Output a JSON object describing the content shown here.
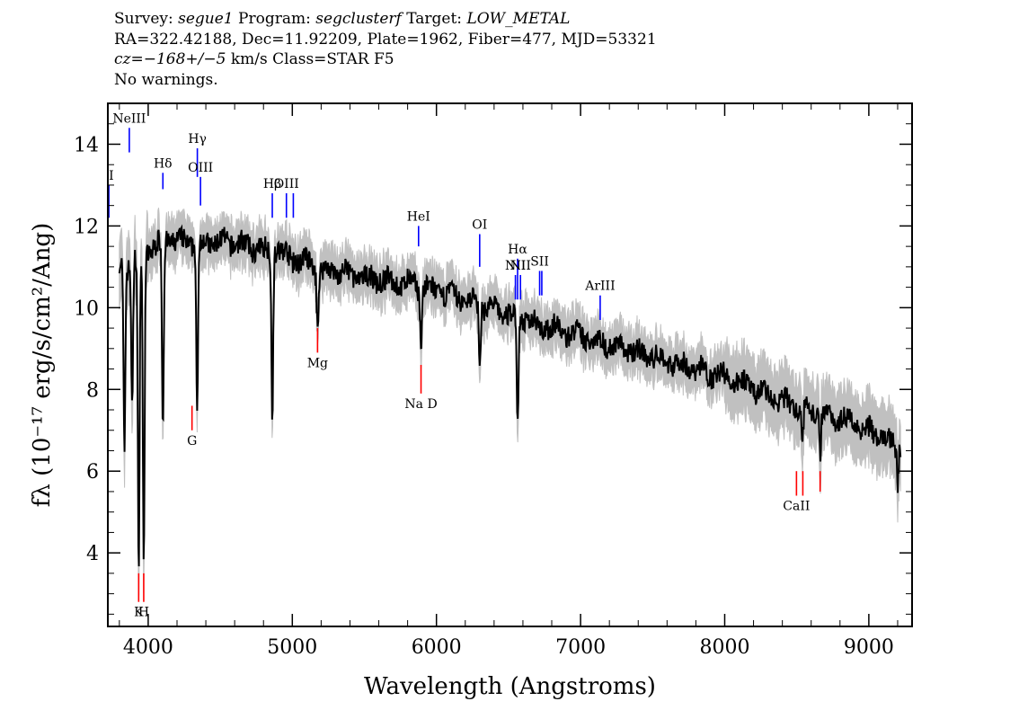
{
  "header": {
    "survey_label": "Survey:",
    "survey": "segue1",
    "program_label": "Program:",
    "program": "segclusterf",
    "target_label": "Target:",
    "target": "LOW_METAL",
    "coords": "RA=322.42188, Dec=11.92209, Plate=1962, Fiber=477, MJD=53321",
    "cz": "cz=−168+/−5",
    "cz_rest": " km/s Class=STAR F5",
    "warnings": "No warnings."
  },
  "colors": {
    "flux": "#000000",
    "error_band": "#c0c0c0",
    "emission": "#0000ff",
    "absorption": "#ff0000"
  },
  "chart_data": {
    "type": "line",
    "title": "",
    "xlabel": "Wavelength (Angstroms)",
    "ylabel": "fλ (10⁻¹⁷ erg/s/cm²/Ang)",
    "xlim": [
      3720,
      9300
    ],
    "ylim": [
      2.2,
      15.0
    ],
    "xticks": [
      4000,
      5000,
      6000,
      7000,
      8000,
      9000
    ],
    "yticks": [
      4,
      6,
      8,
      10,
      12,
      14
    ],
    "grid": false,
    "series": [
      {
        "x": [
          3800,
          3850,
          3900,
          3950,
          4000,
          4050,
          4100,
          4150,
          4200,
          4300,
          4400,
          4500,
          4600,
          4700,
          4800,
          4900,
          5000,
          5100,
          5200,
          5300,
          5400,
          5500,
          5600,
          5700,
          5800,
          5900,
          6000,
          6100,
          6200,
          6300,
          6400,
          6500,
          6600,
          6700,
          6800,
          6900,
          7000,
          7100,
          7200,
          7300,
          7400,
          7500,
          7600,
          7700,
          7800,
          7900,
          8000,
          8100,
          8200,
          8300,
          8400,
          8500,
          8600,
          8700,
          8800,
          8900,
          9000,
          9100,
          9200
        ],
        "y": [
          11.0,
          11.0,
          11.2,
          11.2,
          11.4,
          11.5,
          11.6,
          11.7,
          11.6,
          11.6,
          11.6,
          11.6,
          11.6,
          11.5,
          11.4,
          11.4,
          11.2,
          11.1,
          10.9,
          10.9,
          10.8,
          10.7,
          10.7,
          10.6,
          10.6,
          10.5,
          10.4,
          10.3,
          10.2,
          10.1,
          9.95,
          9.85,
          9.75,
          9.6,
          9.5,
          9.4,
          9.3,
          9.2,
          9.1,
          9.0,
          8.9,
          8.8,
          8.7,
          8.6,
          8.5,
          8.4,
          8.3,
          8.2,
          8.0,
          7.85,
          7.7,
          7.6,
          7.5,
          7.4,
          7.3,
          7.2,
          7.0,
          6.8,
          6.6
        ]
      }
    ],
    "absorption_features": [
      {
        "x": 3934,
        "depth": 7.8
      },
      {
        "x": 3969,
        "depth": 7.6
      },
      {
        "x": 3835,
        "depth": 4.6
      },
      {
        "x": 3889,
        "depth": 3.6
      },
      {
        "x": 4102,
        "depth": 4.6
      },
      {
        "x": 4340,
        "depth": 4.4
      },
      {
        "x": 4861,
        "depth": 4.0
      },
      {
        "x": 5175,
        "depth": 1.4
      },
      {
        "x": 5893,
        "depth": 1.3
      },
      {
        "x": 6300,
        "depth": 1.6
      },
      {
        "x": 6563,
        "depth": 2.8
      },
      {
        "x": 8540,
        "depth": 1.0
      },
      {
        "x": 8662,
        "depth": 1.0
      },
      {
        "x": 9200,
        "depth": 0.8
      }
    ],
    "emission_lines": [
      {
        "label": "II",
        "x": 3727,
        "y_top": 13.0,
        "y_bottom": 12.2
      },
      {
        "label": "NeIII",
        "x": 3869,
        "y_top": 14.4,
        "y_bottom": 13.8
      },
      {
        "label": "Hδ",
        "x": 4102,
        "y_top": 13.3,
        "y_bottom": 12.9
      },
      {
        "label": "Hγ",
        "x": 4341,
        "y_top": 13.9,
        "y_bottom": 13.2
      },
      {
        "label": "OIII",
        "x": 4363,
        "y_top": 13.2,
        "y_bottom": 12.5
      },
      {
        "label": "Hβ",
        "x": 4861,
        "y_top": 12.8,
        "y_bottom": 12.2
      },
      {
        "label": "OIII",
        "x": 4959,
        "y_top": 12.8,
        "y_bottom": 12.2
      },
      {
        "label": "",
        "x": 5007,
        "y_top": 12.8,
        "y_bottom": 12.2
      },
      {
        "label": "HeI",
        "x": 5876,
        "y_top": 12.0,
        "y_bottom": 11.5
      },
      {
        "label": "OI",
        "x": 6300,
        "y_top": 11.8,
        "y_bottom": 11.0
      },
      {
        "label": "NII",
        "x": 6548,
        "y_top": 10.8,
        "y_bottom": 10.2
      },
      {
        "label": "Hα",
        "x": 6563,
        "y_top": 11.2,
        "y_bottom": 10.2
      },
      {
        "label": "NII",
        "x": 6583,
        "y_top": 10.8,
        "y_bottom": 10.2
      },
      {
        "label": "SII",
        "x": 6716,
        "y_top": 10.9,
        "y_bottom": 10.3
      },
      {
        "label": "",
        "x": 6731,
        "y_top": 10.9,
        "y_bottom": 10.3
      },
      {
        "label": "ArIII",
        "x": 7136,
        "y_top": 10.3,
        "y_bottom": 9.7
      }
    ],
    "absorption_lines": [
      {
        "label": "K",
        "x": 3934,
        "y_top": 3.5,
        "y_bottom": 2.8
      },
      {
        "label": "H",
        "x": 3969,
        "y_top": 3.5,
        "y_bottom": 2.8
      },
      {
        "label": "G",
        "x": 4304,
        "y_top": 7.6,
        "y_bottom": 7.0
      },
      {
        "label": "Mg",
        "x": 5175,
        "y_top": 9.5,
        "y_bottom": 8.9
      },
      {
        "label": "Na D",
        "x": 5893,
        "y_top": 8.6,
        "y_bottom": 7.9
      },
      {
        "label": "CaII",
        "x": 8498,
        "y_top": 6.0,
        "y_bottom": 5.4
      },
      {
        "label": "",
        "x": 8542,
        "y_top": 6.0,
        "y_bottom": 5.4
      },
      {
        "label": "",
        "x": 8662,
        "y_top": 6.0,
        "y_bottom": 5.5
      }
    ]
  }
}
